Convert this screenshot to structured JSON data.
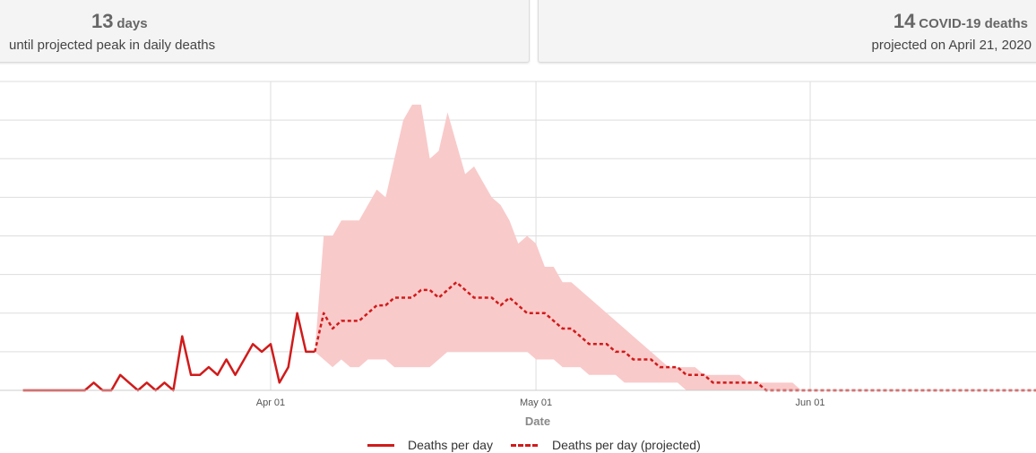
{
  "cards": {
    "peak": {
      "number": "13",
      "unit": "days",
      "subtitle": "until projected peak in daily deaths"
    },
    "total": {
      "number": "14",
      "unit": "COVID-19 deaths",
      "subtitle": "projected on April 21, 2020"
    }
  },
  "colors": {
    "line": "#d01b1b",
    "band": "#f9caca",
    "grid": "#dddddd",
    "axis_text": "#555555"
  },
  "chart_data": {
    "type": "line",
    "xlabel": "Date",
    "ylabel": "",
    "x_ticks": [
      "Apr 01",
      "May 01",
      "Jun 01"
    ],
    "ylim": [
      0,
      8
    ],
    "grid": true,
    "legend_placement": "bottom-center",
    "series": [
      {
        "name": "Deaths per day",
        "style": "solid",
        "points": [
          [
            "2020-03-04",
            0
          ],
          [
            "2020-03-05",
            0
          ],
          [
            "2020-03-06",
            0
          ],
          [
            "2020-03-07",
            0
          ],
          [
            "2020-03-08",
            0
          ],
          [
            "2020-03-09",
            0
          ],
          [
            "2020-03-10",
            0
          ],
          [
            "2020-03-11",
            0
          ],
          [
            "2020-03-12",
            0.2
          ],
          [
            "2020-03-13",
            0
          ],
          [
            "2020-03-14",
            0
          ],
          [
            "2020-03-15",
            0.4
          ],
          [
            "2020-03-16",
            0.2
          ],
          [
            "2020-03-17",
            0
          ],
          [
            "2020-03-18",
            0.2
          ],
          [
            "2020-03-19",
            0
          ],
          [
            "2020-03-20",
            0.2
          ],
          [
            "2020-03-21",
            0
          ],
          [
            "2020-03-22",
            1.4
          ],
          [
            "2020-03-23",
            0.4
          ],
          [
            "2020-03-24",
            0.4
          ],
          [
            "2020-03-25",
            0.6
          ],
          [
            "2020-03-26",
            0.4
          ],
          [
            "2020-03-27",
            0.8
          ],
          [
            "2020-03-28",
            0.4
          ],
          [
            "2020-03-29",
            0.8
          ],
          [
            "2020-03-30",
            1.2
          ],
          [
            "2020-03-31",
            1.0
          ],
          [
            "2020-04-01",
            1.2
          ],
          [
            "2020-04-02",
            0.2
          ],
          [
            "2020-04-03",
            0.6
          ],
          [
            "2020-04-04",
            2.0
          ],
          [
            "2020-04-05",
            1.0
          ],
          [
            "2020-04-06",
            1.0
          ]
        ]
      },
      {
        "name": "Deaths per day (projected)",
        "style": "dashed",
        "points": [
          [
            "2020-04-06",
            1.0
          ],
          [
            "2020-04-07",
            2.0
          ],
          [
            "2020-04-08",
            1.6
          ],
          [
            "2020-04-09",
            1.8
          ],
          [
            "2020-04-10",
            1.8
          ],
          [
            "2020-04-11",
            1.8
          ],
          [
            "2020-04-12",
            2.0
          ],
          [
            "2020-04-13",
            2.2
          ],
          [
            "2020-04-14",
            2.2
          ],
          [
            "2020-04-15",
            2.4
          ],
          [
            "2020-04-16",
            2.4
          ],
          [
            "2020-04-17",
            2.4
          ],
          [
            "2020-04-18",
            2.6
          ],
          [
            "2020-04-19",
            2.6
          ],
          [
            "2020-04-20",
            2.4
          ],
          [
            "2020-04-21",
            2.6
          ],
          [
            "2020-04-22",
            2.8
          ],
          [
            "2020-04-23",
            2.6
          ],
          [
            "2020-04-24",
            2.4
          ],
          [
            "2020-04-25",
            2.4
          ],
          [
            "2020-04-26",
            2.4
          ],
          [
            "2020-04-27",
            2.2
          ],
          [
            "2020-04-28",
            2.4
          ],
          [
            "2020-04-29",
            2.2
          ],
          [
            "2020-04-30",
            2.0
          ],
          [
            "2020-05-01",
            2.0
          ],
          [
            "2020-05-02",
            2.0
          ],
          [
            "2020-05-03",
            1.8
          ],
          [
            "2020-05-04",
            1.6
          ],
          [
            "2020-05-05",
            1.6
          ],
          [
            "2020-05-06",
            1.4
          ],
          [
            "2020-05-07",
            1.2
          ],
          [
            "2020-05-08",
            1.2
          ],
          [
            "2020-05-09",
            1.2
          ],
          [
            "2020-05-10",
            1.0
          ],
          [
            "2020-05-11",
            1.0
          ],
          [
            "2020-05-12",
            0.8
          ],
          [
            "2020-05-13",
            0.8
          ],
          [
            "2020-05-14",
            0.8
          ],
          [
            "2020-05-15",
            0.6
          ],
          [
            "2020-05-16",
            0.6
          ],
          [
            "2020-05-17",
            0.6
          ],
          [
            "2020-05-18",
            0.4
          ],
          [
            "2020-05-19",
            0.4
          ],
          [
            "2020-05-20",
            0.4
          ],
          [
            "2020-05-21",
            0.2
          ],
          [
            "2020-05-22",
            0.2
          ],
          [
            "2020-05-23",
            0.2
          ],
          [
            "2020-05-24",
            0.2
          ],
          [
            "2020-05-25",
            0.2
          ],
          [
            "2020-05-26",
            0.2
          ],
          [
            "2020-05-27",
            0
          ],
          [
            "2020-05-28",
            0
          ],
          [
            "2020-05-29",
            0
          ],
          [
            "2020-05-30",
            0
          ],
          [
            "2020-05-31",
            0
          ],
          [
            "2020-06-01",
            0
          ],
          [
            "2020-06-10",
            0
          ],
          [
            "2020-06-20",
            0
          ],
          [
            "2020-06-30",
            0
          ],
          [
            "2020-07-10",
            0
          ]
        ]
      }
    ],
    "band": {
      "points": [
        [
          "2020-04-06",
          1.0,
          1.0
        ],
        [
          "2020-04-07",
          0.8,
          4.0
        ],
        [
          "2020-04-08",
          0.6,
          4.0
        ],
        [
          "2020-04-09",
          0.8,
          4.4
        ],
        [
          "2020-04-10",
          0.6,
          4.4
        ],
        [
          "2020-04-11",
          0.6,
          4.4
        ],
        [
          "2020-04-12",
          0.8,
          4.8
        ],
        [
          "2020-04-13",
          0.8,
          5.2
        ],
        [
          "2020-04-14",
          0.8,
          5.0
        ],
        [
          "2020-04-15",
          0.6,
          6.0
        ],
        [
          "2020-04-16",
          0.6,
          7.0
        ],
        [
          "2020-04-17",
          0.6,
          7.4
        ],
        [
          "2020-04-18",
          0.6,
          7.4
        ],
        [
          "2020-04-19",
          0.6,
          6.0
        ],
        [
          "2020-04-20",
          0.8,
          6.2
        ],
        [
          "2020-04-21",
          1.0,
          7.2
        ],
        [
          "2020-04-22",
          1.0,
          6.4
        ],
        [
          "2020-04-23",
          1.0,
          5.6
        ],
        [
          "2020-04-24",
          1.0,
          5.8
        ],
        [
          "2020-04-25",
          1.0,
          5.4
        ],
        [
          "2020-04-26",
          1.0,
          5.0
        ],
        [
          "2020-04-27",
          1.0,
          4.8
        ],
        [
          "2020-04-28",
          1.0,
          4.4
        ],
        [
          "2020-04-29",
          1.0,
          3.8
        ],
        [
          "2020-04-30",
          1.0,
          4.0
        ],
        [
          "2020-05-01",
          0.8,
          3.8
        ],
        [
          "2020-05-02",
          0.8,
          3.2
        ],
        [
          "2020-05-03",
          0.8,
          3.2
        ],
        [
          "2020-05-04",
          0.6,
          2.8
        ],
        [
          "2020-05-05",
          0.6,
          2.8
        ],
        [
          "2020-05-06",
          0.6,
          2.6
        ],
        [
          "2020-05-07",
          0.4,
          2.4
        ],
        [
          "2020-05-08",
          0.4,
          2.2
        ],
        [
          "2020-05-09",
          0.4,
          2.0
        ],
        [
          "2020-05-10",
          0.4,
          1.8
        ],
        [
          "2020-05-11",
          0.2,
          1.6
        ],
        [
          "2020-05-12",
          0.2,
          1.4
        ],
        [
          "2020-05-13",
          0.2,
          1.2
        ],
        [
          "2020-05-14",
          0.2,
          1.0
        ],
        [
          "2020-05-15",
          0.2,
          0.8
        ],
        [
          "2020-05-16",
          0.2,
          0.6
        ],
        [
          "2020-05-17",
          0.2,
          0.6
        ],
        [
          "2020-05-18",
          0,
          0.6
        ],
        [
          "2020-05-19",
          0,
          0.6
        ],
        [
          "2020-05-20",
          0,
          0.4
        ],
        [
          "2020-05-21",
          0,
          0.4
        ],
        [
          "2020-05-22",
          0,
          0.4
        ],
        [
          "2020-05-23",
          0,
          0.4
        ],
        [
          "2020-05-24",
          0,
          0.4
        ],
        [
          "2020-05-25",
          0,
          0.2
        ],
        [
          "2020-05-26",
          0,
          0.2
        ],
        [
          "2020-05-27",
          0,
          0.2
        ],
        [
          "2020-05-28",
          0,
          0.2
        ],
        [
          "2020-05-29",
          0,
          0.2
        ],
        [
          "2020-05-30",
          0,
          0.2
        ],
        [
          "2020-05-31",
          0,
          0
        ]
      ]
    }
  },
  "legend": {
    "actual_label": "Deaths per day",
    "projected_label": "Deaths per day (projected)"
  }
}
